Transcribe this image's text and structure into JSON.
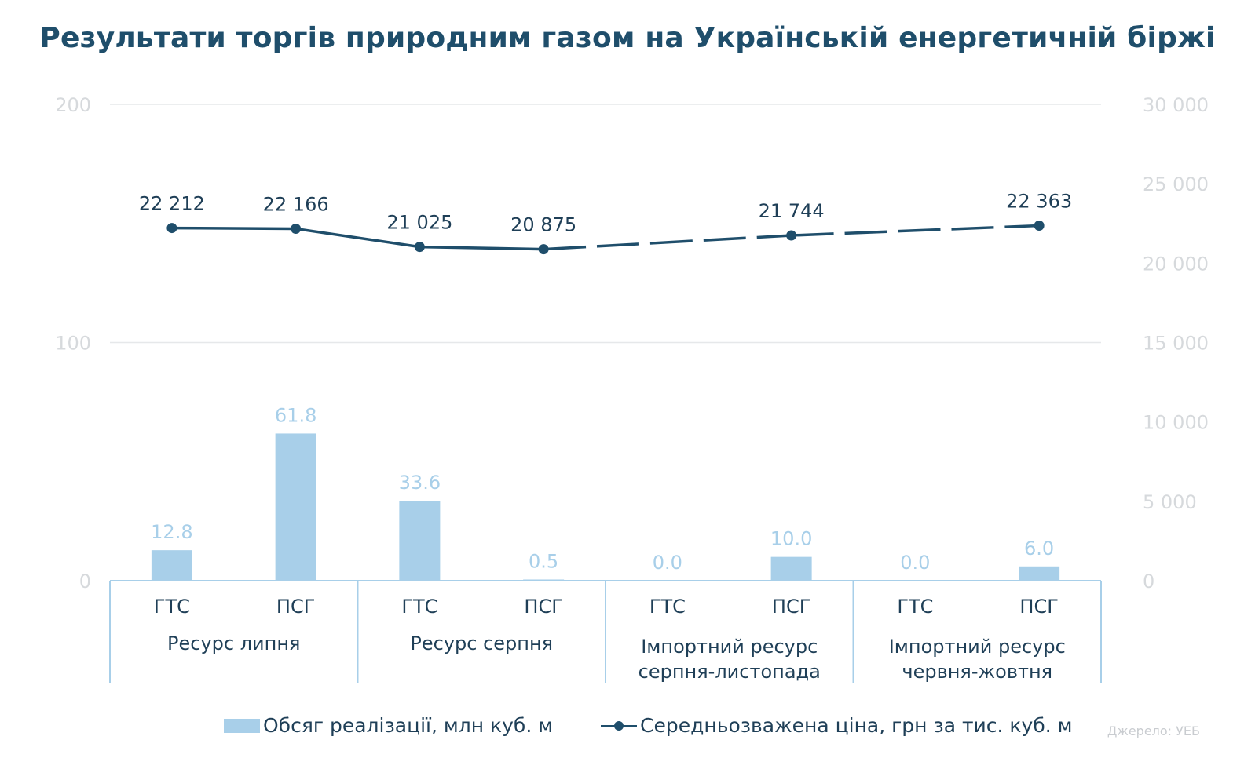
{
  "title": "Результати торгів природним газом на Українській енергетичній біржі",
  "source": "Джерело: УЕБ",
  "chart_data": {
    "type": "bar+line",
    "categories": [
      {
        "sub": "ГТС",
        "group": "Ресурс липня"
      },
      {
        "sub": "ПСГ",
        "group": "Ресурс липня"
      },
      {
        "sub": "ГТС",
        "group": "Ресурс серпня"
      },
      {
        "sub": "ПСГ",
        "group": "Ресурс серпня"
      },
      {
        "sub": "ГТС",
        "group": "Імпортний ресурс серпня-листопада"
      },
      {
        "sub": "ПСГ",
        "group": "Імпортний ресурс серпня-листопада"
      },
      {
        "sub": "ГТС",
        "group": "Імпортний ресурс червня-жовтня"
      },
      {
        "sub": "ПСГ",
        "group": "Імпортний ресурс червня-жовтня"
      }
    ],
    "groups": [
      {
        "lines": [
          "Ресурс липня"
        ]
      },
      {
        "lines": [
          "Ресурс серпня"
        ]
      },
      {
        "lines": [
          "Імпортний ресурс",
          "серпня-листопада"
        ]
      },
      {
        "lines": [
          "Імпортний ресурс",
          "червня-жовтня"
        ]
      }
    ],
    "series": [
      {
        "name": "Обсяг реалізації, млн куб. м",
        "type": "bar",
        "axis": "left",
        "values": [
          12.8,
          61.8,
          33.6,
          0.5,
          0.0,
          10.0,
          0.0,
          6.0
        ],
        "labels": [
          "12.8",
          "61.8",
          "33.6",
          "0.5",
          "0.0",
          "10.0",
          "0.0",
          "6.0"
        ],
        "color": "#a8cfe9"
      },
      {
        "name": "Середньозважена ціна, грн за тис. куб. м",
        "type": "line",
        "axis": "right",
        "values": [
          22212,
          22166,
          21025,
          20875,
          null,
          21744,
          null,
          22363
        ],
        "labels": [
          "22 212",
          "22 166",
          "21 025",
          "20 875",
          "",
          "21 744",
          "",
          "22 363"
        ],
        "color": "#1f4e6b",
        "dashed_after_index": 3
      }
    ],
    "y_left": {
      "range": [
        0,
        200
      ],
      "ticks": [
        0,
        100,
        200
      ],
      "tick_labels": [
        "0",
        "100",
        "200"
      ]
    },
    "y_right": {
      "range": [
        0,
        30000
      ],
      "ticks": [
        0,
        5000,
        10000,
        15000,
        20000,
        25000,
        30000
      ],
      "tick_labels": [
        "0",
        "5 000",
        "10 000",
        "15 000",
        "20 000",
        "25 000",
        "30 000"
      ]
    },
    "gridlines": true,
    "legend_position": "bottom"
  }
}
